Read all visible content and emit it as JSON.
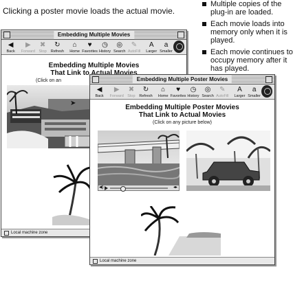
{
  "caption": "Clicking a poster movie loads the actual movie.",
  "bullets": [
    "Multiple copies of the plug-in are loaded.",
    "Each movie loads into memory only when it is played.",
    "Each movie continues to occupy memory after it has played."
  ],
  "back_window": {
    "title": "Embedding Multiple Movies",
    "heading_line1": "Embedding Multiple Movies",
    "heading_line2": "That Link to Actual Movies",
    "note": "(Click on an",
    "status": "Local machine zone"
  },
  "front_window": {
    "title": "Embedding Multiple Poster Movies",
    "heading_line1": "Embedding Multiple Poster Movies",
    "heading_line2": "That Link to Actual Movies",
    "note": "(Click on any picture below)",
    "status": "Local machine zone"
  },
  "toolbar": [
    {
      "label": "Back",
      "icon": "back-arrow-icon",
      "glyph": "◀",
      "enabled": true
    },
    {
      "label": "Forward",
      "icon": "forward-arrow-icon",
      "glyph": "▶",
      "enabled": false
    },
    {
      "label": "Stop",
      "icon": "stop-icon",
      "glyph": "✖",
      "enabled": false
    },
    {
      "label": "Refresh",
      "icon": "refresh-icon",
      "glyph": "↻",
      "enabled": true
    },
    {
      "label": "Home",
      "icon": "home-icon",
      "glyph": "⌂",
      "enabled": true
    },
    {
      "label": "Favorites",
      "icon": "favorites-icon",
      "glyph": "♥",
      "enabled": true
    },
    {
      "label": "History",
      "icon": "history-icon",
      "glyph": "◷",
      "enabled": true
    },
    {
      "label": "Search",
      "icon": "search-icon",
      "glyph": "◎",
      "enabled": true
    },
    {
      "label": "AutoFill",
      "icon": "autofill-icon",
      "glyph": "✎",
      "enabled": false
    },
    {
      "label": "Larger",
      "icon": "larger-text-icon",
      "glyph": "A",
      "enabled": true
    },
    {
      "label": "Smaller",
      "icon": "smaller-text-icon",
      "glyph": "a",
      "enabled": true
    }
  ],
  "movie_controller": {
    "volume_icon": "speaker-icon",
    "play_icon": "play-icon",
    "progress": 0.22
  },
  "colors": {
    "arrow": "#cfcfcf",
    "window_border": "#444444"
  }
}
